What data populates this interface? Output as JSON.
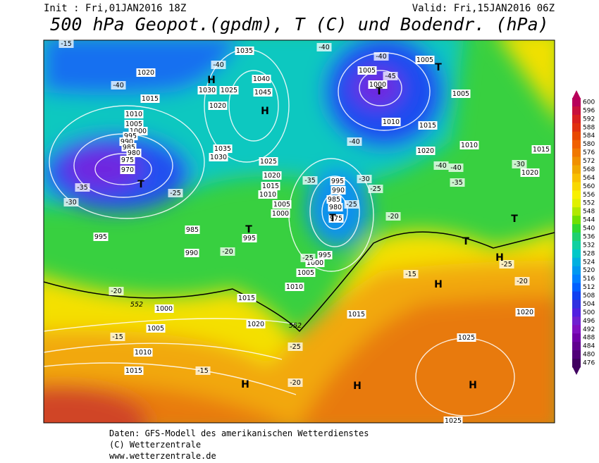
{
  "header": {
    "init": "Init : Fri,01JAN2016 18Z",
    "valid": "Valid: Fri,15JAN2016 06Z",
    "title": "500 hPa Geopot.(gpdm), T (C) und Bodendr. (hPa)"
  },
  "map": {
    "isobar_labels": [
      1020,
      1015,
      1010,
      1005,
      1000,
      995,
      990,
      985,
      980,
      975,
      970,
      1030,
      1025,
      1020,
      1035,
      1040,
      1045,
      1035,
      1030,
      1025,
      1020,
      1015,
      1010,
      1005,
      1000,
      985,
      995,
      990,
      995,
      1005,
      1000,
      1005,
      1005,
      1010,
      1015,
      1010,
      1015,
      1020,
      1020,
      995,
      990,
      985,
      980,
      975,
      995,
      1000,
      1005,
      1010,
      1015,
      1000,
      1005,
      1010,
      1015,
      1020,
      1015,
      1025,
      1020,
      1025
    ],
    "temperature_labels": [
      -15,
      -40,
      -40,
      -40,
      -40,
      -45,
      -40,
      -35,
      -30,
      -25,
      -25,
      -35,
      -30,
      -25,
      -20,
      -20,
      -40,
      -40,
      -35,
      -30,
      -25,
      -20,
      -15,
      -25,
      -20,
      -15,
      -15,
      -25,
      -20
    ],
    "geopotential_labels": [
      552,
      552
    ],
    "markers": [
      "H",
      "H",
      "T",
      "T",
      "T",
      "T",
      "T",
      "T",
      "T",
      "H",
      "H",
      "H",
      "H",
      "H"
    ]
  },
  "colorbar": {
    "ticks": [
      600,
      596,
      592,
      588,
      584,
      580,
      576,
      572,
      568,
      564,
      560,
      556,
      552,
      548,
      544,
      540,
      536,
      532,
      528,
      524,
      520,
      516,
      512,
      508,
      504,
      500,
      496,
      492,
      488,
      484,
      480,
      476
    ],
    "colors": [
      "#b8005a",
      "#c8103c",
      "#d82020",
      "#e03010",
      "#e84800",
      "#f06000",
      "#f07800",
      "#f09000",
      "#f0a800",
      "#f8c000",
      "#f8d800",
      "#f8f000",
      "#e0f000",
      "#b0e800",
      "#70e000",
      "#30d830",
      "#20d070",
      "#10d0a0",
      "#00c8c8",
      "#00b0e0",
      "#0098f0",
      "#0080ff",
      "#0060ff",
      "#1040f0",
      "#3030e0",
      "#5020e0",
      "#7020d0",
      "#8010c0",
      "#7000a8",
      "#600090",
      "#500078",
      "#400060"
    ]
  },
  "footer": {
    "line1": "Daten: GFS-Modell des amerikanischen Wetterdienstes",
    "line2": "(C) Wetterzentrale",
    "line3": "www.wetterzentrale.de"
  }
}
